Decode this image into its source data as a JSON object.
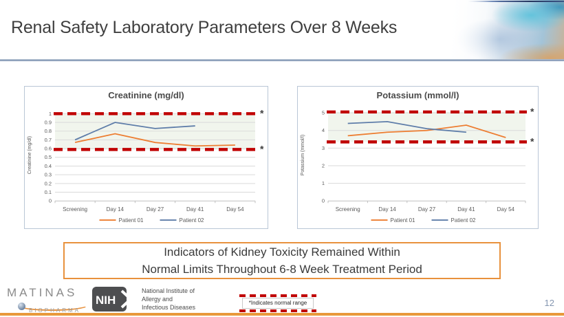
{
  "slide": {
    "title": "Renal Safety Laboratory Parameters Over 8 Weeks",
    "page_number": "12"
  },
  "chart_data": [
    {
      "type": "line",
      "title": "Creatinine (mg/dl)",
      "ylabel": "Creatinine (mg/dl)",
      "categories": [
        "Screening",
        "Day 14",
        "Day 27",
        "Day 41",
        "Day 54"
      ],
      "series": [
        {
          "name": "Patient 01",
          "color": "#ED7D31",
          "values": [
            0.67,
            0.77,
            0.67,
            0.63,
            0.64
          ]
        },
        {
          "name": "Patient 02",
          "color": "#5E7DA9",
          "values": [
            0.7,
            0.9,
            0.83,
            0.86,
            null
          ]
        }
      ],
      "ylim": [
        0,
        1.05
      ],
      "yticks": [
        0,
        0.1,
        0.2,
        0.3,
        0.4,
        0.5,
        0.6,
        0.7,
        0.8,
        0.9,
        1
      ],
      "normal_range": {
        "lower": 0.59,
        "upper": 1.0,
        "color": "#C00000",
        "marker": "*",
        "band_fill": "#F1F5ED"
      },
      "grid": true,
      "legend_position": "bottom"
    },
    {
      "type": "line",
      "title": "Potassium (mmol/l)",
      "ylabel": "Potassium (mmol/l)",
      "categories": [
        "Screening",
        "Day 14",
        "Day 27",
        "Day 41",
        "Day 54"
      ],
      "series": [
        {
          "name": "Patient 01",
          "color": "#ED7D31",
          "values": [
            3.7,
            3.9,
            4.0,
            4.3,
            3.6
          ]
        },
        {
          "name": "Patient 02",
          "color": "#5E7DA9",
          "values": [
            4.4,
            4.5,
            4.1,
            3.9,
            null
          ]
        }
      ],
      "ylim": [
        0,
        5.2
      ],
      "yticks": [
        0,
        1,
        2,
        3,
        4,
        5
      ],
      "normal_range": {
        "lower": 3.35,
        "upper": 5.05,
        "color": "#C00000",
        "marker": "*",
        "band_fill": "#F1F5ED"
      },
      "grid": true,
      "legend_position": "bottom"
    }
  ],
  "summary_box": {
    "line1": "Indicators of Kidney Toxicity Remained Within",
    "line2": "Normal Limits Throughout 6-8 Week Treatment Period"
  },
  "footer": {
    "matinas": {
      "name": "MATINAS",
      "sub": "BIOPHARMA"
    },
    "nih": {
      "acronym": "NIH",
      "line1": "National Institute of",
      "line2": "Allergy and",
      "line3": "Infectious Diseases"
    },
    "range_note": "*Indicates normal range"
  },
  "colors": {
    "accent_orange": "#E8913C",
    "series_orange": "#ED7D31",
    "series_blue": "#5E7DA9",
    "normal_range_red": "#C00000",
    "band_green": "#F1F5ED",
    "divider_blue": "#8296B4",
    "bottom_bar_orange": "#E8993B"
  }
}
